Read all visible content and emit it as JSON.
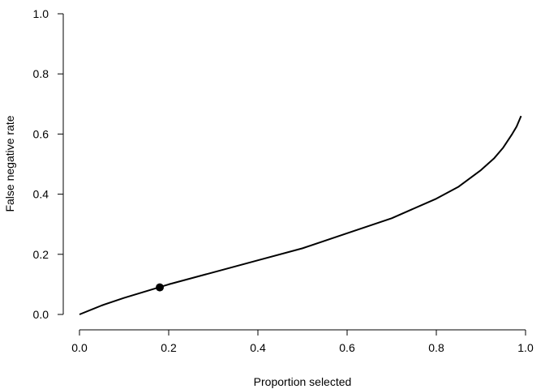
{
  "chart_data": {
    "type": "line",
    "title": "",
    "xlabel": "Proportion selected",
    "ylabel": "False negative rate",
    "xlim": [
      0,
      1
    ],
    "ylim": [
      0,
      1
    ],
    "grid": false,
    "xticks": [
      "0.0",
      "0.2",
      "0.4",
      "0.6",
      "0.8",
      "1.0"
    ],
    "yticks": [
      "0.0",
      "0.2",
      "0.4",
      "0.6",
      "0.8",
      "1.0"
    ],
    "series": [
      {
        "color": "#000000",
        "x": [
          0,
          0.05,
          0.1,
          0.2,
          0.3,
          0.4,
          0.5,
          0.6,
          0.7,
          0.8,
          0.85,
          0.9,
          0.93,
          0.95,
          0.97,
          0.98,
          0.99
        ],
        "y": [
          0,
          0.03,
          0.055,
          0.1,
          0.14,
          0.18,
          0.22,
          0.27,
          0.32,
          0.385,
          0.425,
          0.48,
          0.52,
          0.555,
          0.6,
          0.625,
          0.66
        ]
      }
    ],
    "points": [
      {
        "x": 0.18,
        "y": 0.09,
        "color": "#000000"
      }
    ]
  }
}
